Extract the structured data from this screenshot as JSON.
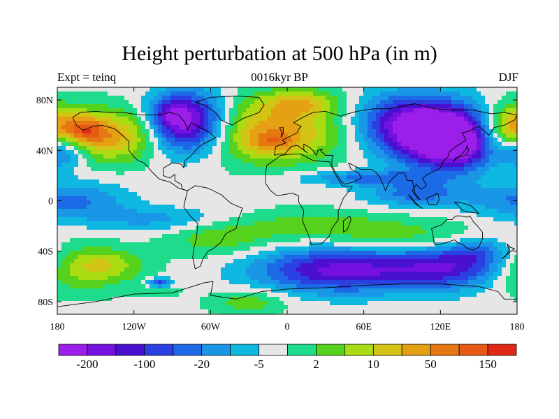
{
  "title": "Height perturbation at 500 hPa (in m)",
  "subtitle_left": "Expt = teinq",
  "subtitle_center": "0016kyr BP",
  "subtitle_right": "DJF",
  "map": {
    "projection": "cylindrical-equidistant",
    "lon_range": [
      -180,
      180
    ],
    "lat_range": [
      -90,
      90
    ],
    "x_ticks": [
      {
        "value": -180,
        "label": "180"
      },
      {
        "value": -120,
        "label": "120W"
      },
      {
        "value": -60,
        "label": "60W"
      },
      {
        "value": 0,
        "label": "0"
      },
      {
        "value": 60,
        "label": "60E"
      },
      {
        "value": 120,
        "label": "120E"
      },
      {
        "value": 180,
        "label": "180"
      }
    ],
    "y_ticks": [
      {
        "value": 80,
        "label": "80N"
      },
      {
        "value": 40,
        "label": "40N"
      },
      {
        "value": 0,
        "label": "0"
      },
      {
        "value": -40,
        "label": "40S"
      },
      {
        "value": -80,
        "label": "80S"
      }
    ]
  },
  "colorbar": {
    "colors": [
      "#9b1fe8",
      "#7411e0",
      "#4a10d0",
      "#2a40e0",
      "#1d6ae6",
      "#1a96e6",
      "#0fb8e0",
      "#e6e6e6",
      "#1edc8c",
      "#55d21e",
      "#aadc14",
      "#d2c314",
      "#e6a014",
      "#e67814",
      "#e65a14",
      "#e02814"
    ],
    "labels": [
      {
        "boundary": 1,
        "text": "-200"
      },
      {
        "boundary": 3,
        "text": "-100"
      },
      {
        "boundary": 5,
        "text": "-20"
      },
      {
        "boundary": 7,
        "text": "-5"
      },
      {
        "boundary": 9,
        "text": "2"
      },
      {
        "boundary": 11,
        "text": "10"
      },
      {
        "boundary": 13,
        "text": "50"
      },
      {
        "boundary": 15,
        "text": "150"
      }
    ]
  },
  "field_blobs": [
    {
      "lon": -140,
      "lat": 52,
      "rlon": 40,
      "rlat": 20,
      "val": 5
    },
    {
      "lon": -158,
      "lat": 56,
      "rlon": 14,
      "rlat": 10,
      "val": 3
    },
    {
      "lon": -78,
      "lat": 62,
      "rlon": 30,
      "rlat": 24,
      "val": -8
    },
    {
      "lon": -92,
      "lat": 68,
      "rlon": 14,
      "rlat": 12,
      "val": -2
    },
    {
      "lon": -10,
      "lat": 55,
      "rlon": 55,
      "rlat": 24,
      "val": 5
    },
    {
      "lon": -12,
      "lat": 46,
      "rlon": 18,
      "rlat": 8,
      "val": 2
    },
    {
      "lon": 10,
      "lat": 78,
      "rlon": 32,
      "rlat": 10,
      "val": 3
    },
    {
      "lon": 90,
      "lat": 62,
      "rlon": 40,
      "rlat": 24,
      "val": -5
    },
    {
      "lon": 125,
      "lat": 50,
      "rlon": 38,
      "rlat": 25,
      "val": -9
    },
    {
      "lon": 135,
      "lat": 42,
      "rlon": 18,
      "rlat": 14,
      "val": -2
    },
    {
      "lon": 175,
      "lat": 58,
      "rlon": 22,
      "rlat": 18,
      "val": 5
    },
    {
      "lon": -175,
      "lat": 40,
      "rlon": 18,
      "rlat": 14,
      "val": -4
    },
    {
      "lon": -170,
      "lat": 0,
      "rlon": 45,
      "rlat": 15,
      "val": -3
    },
    {
      "lon": -100,
      "lat": -15,
      "rlon": 55,
      "rlat": 10,
      "val": -2
    },
    {
      "lon": 60,
      "lat": 18,
      "rlon": 50,
      "rlat": 6,
      "val": -3
    },
    {
      "lon": 100,
      "lat": 5,
      "rlon": 40,
      "rlat": 10,
      "val": -3
    },
    {
      "lon": 20,
      "lat": -20,
      "rlon": 60,
      "rlat": 12,
      "val": 2
    },
    {
      "lon": 100,
      "lat": -30,
      "rlon": 60,
      "rlat": 14,
      "val": 2
    },
    {
      "lon": -55,
      "lat": -30,
      "rlon": 40,
      "rlat": 14,
      "val": 2
    },
    {
      "lon": -170,
      "lat": -55,
      "rlon": 40,
      "rlat": 18,
      "val": 3
    },
    {
      "lon": -140,
      "lat": -50,
      "rlon": 30,
      "rlat": 12,
      "val": 2
    },
    {
      "lon": 40,
      "lat": -55,
      "rlon": 65,
      "rlat": 18,
      "val": -6
    },
    {
      "lon": 130,
      "lat": -52,
      "rlon": 50,
      "rlat": 18,
      "val": -5
    },
    {
      "lon": 150,
      "lat": -40,
      "rlon": 25,
      "rlat": 12,
      "val": -2
    },
    {
      "lon": -100,
      "lat": -68,
      "rlon": 20,
      "rlat": 8,
      "val": 1
    },
    {
      "lon": -100,
      "lat": -65,
      "rlon": 10,
      "rlat": 4,
      "val": -5
    },
    {
      "lon": -30,
      "lat": -80,
      "rlon": 30,
      "rlat": 10,
      "val": 2
    }
  ],
  "coast_paths": [
    [
      [
        -168,
        66
      ],
      [
        -162,
        70
      ],
      [
        -150,
        71
      ],
      [
        -140,
        70
      ],
      [
        -128,
        70
      ],
      [
        -115,
        68
      ],
      [
        -100,
        68
      ],
      [
        -92,
        70
      ],
      [
        -85,
        68
      ],
      [
        -80,
        62
      ],
      [
        -78,
        56
      ],
      [
        -75,
        62
      ],
      [
        -68,
        58
      ],
      [
        -62,
        55
      ],
      [
        -56,
        50
      ],
      [
        -66,
        45
      ],
      [
        -70,
        42
      ],
      [
        -75,
        36
      ],
      [
        -80,
        32
      ],
      [
        -81,
        26
      ],
      [
        -83,
        29
      ],
      [
        -90,
        30
      ],
      [
        -97,
        26
      ],
      [
        -97,
        20
      ],
      [
        -92,
        18
      ],
      [
        -88,
        21
      ],
      [
        -88,
        16
      ],
      [
        -83,
        13
      ],
      [
        -82,
        9
      ],
      [
        -78,
        8
      ],
      [
        -85,
        10
      ],
      [
        -92,
        15
      ],
      [
        -100,
        17
      ],
      [
        -106,
        23
      ],
      [
        -112,
        30
      ],
      [
        -117,
        32
      ],
      [
        -120,
        35
      ],
      [
        -124,
        40
      ],
      [
        -124,
        47
      ],
      [
        -128,
        51
      ],
      [
        -135,
        57
      ],
      [
        -145,
        60
      ],
      [
        -152,
        59
      ],
      [
        -160,
        56
      ],
      [
        -165,
        60
      ],
      [
        -168,
        66
      ]
    ],
    [
      [
        -78,
        8
      ],
      [
        -72,
        12
      ],
      [
        -62,
        10
      ],
      [
        -52,
        5
      ],
      [
        -44,
        -2
      ],
      [
        -35,
        -6
      ],
      [
        -38,
        -14
      ],
      [
        -40,
        -22
      ],
      [
        -48,
        -26
      ],
      [
        -52,
        -33
      ],
      [
        -58,
        -38
      ],
      [
        -62,
        -40
      ],
      [
        -66,
        -46
      ],
      [
        -68,
        -52
      ],
      [
        -72,
        -54
      ],
      [
        -74,
        -45
      ],
      [
        -73,
        -37
      ],
      [
        -71,
        -30
      ],
      [
        -70,
        -18
      ],
      [
        -76,
        -12
      ],
      [
        -81,
        -5
      ],
      [
        -80,
        0
      ],
      [
        -78,
        8
      ]
    ],
    [
      [
        -72,
        78
      ],
      [
        -60,
        82
      ],
      [
        -40,
        83
      ],
      [
        -22,
        82
      ],
      [
        -18,
        76
      ],
      [
        -22,
        70
      ],
      [
        -35,
        65
      ],
      [
        -43,
        60
      ],
      [
        -52,
        64
      ],
      [
        -56,
        70
      ],
      [
        -65,
        76
      ],
      [
        -72,
        78
      ]
    ],
    [
      [
        -17,
        21
      ],
      [
        -16,
        28
      ],
      [
        -9,
        33
      ],
      [
        -5,
        36
      ],
      [
        3,
        37
      ],
      [
        11,
        37
      ],
      [
        20,
        32
      ],
      [
        30,
        31
      ],
      [
        33,
        31
      ],
      [
        37,
        22
      ],
      [
        43,
        12
      ],
      [
        51,
        11
      ],
      [
        44,
        2
      ],
      [
        40,
        -8
      ],
      [
        40,
        -15
      ],
      [
        35,
        -22
      ],
      [
        33,
        -28
      ],
      [
        27,
        -34
      ],
      [
        19,
        -35
      ],
      [
        17,
        -28
      ],
      [
        12,
        -16
      ],
      [
        13,
        -8
      ],
      [
        9,
        -1
      ],
      [
        9,
        4
      ],
      [
        4,
        6
      ],
      [
        -8,
        4
      ],
      [
        -13,
        8
      ],
      [
        -17,
        14
      ],
      [
        -17,
        21
      ]
    ],
    [
      [
        -10,
        36
      ],
      [
        -9,
        43
      ],
      [
        -1,
        46
      ],
      [
        -4,
        48
      ],
      [
        2,
        51
      ],
      [
        8,
        54
      ],
      [
        9,
        57
      ],
      [
        11,
        59
      ],
      [
        5,
        62
      ],
      [
        12,
        66
      ],
      [
        20,
        70
      ],
      [
        30,
        71
      ],
      [
        42,
        67
      ],
      [
        44,
        68
      ],
      [
        55,
        71
      ],
      [
        68,
        73
      ],
      [
        80,
        73
      ],
      [
        100,
        77
      ],
      [
        115,
        73
      ],
      [
        130,
        72
      ],
      [
        145,
        72
      ],
      [
        160,
        69
      ],
      [
        170,
        70
      ],
      [
        180,
        68
      ],
      [
        178,
        64
      ],
      [
        170,
        60
      ],
      [
        162,
        58
      ],
      [
        158,
        52
      ],
      [
        150,
        59
      ],
      [
        142,
        55
      ],
      [
        137,
        54
      ],
      [
        140,
        48
      ],
      [
        132,
        43
      ],
      [
        127,
        39
      ],
      [
        126,
        35
      ],
      [
        122,
        31
      ],
      [
        120,
        26
      ],
      [
        110,
        21
      ],
      [
        106,
        18
      ],
      [
        109,
        12
      ],
      [
        105,
        9
      ],
      [
        101,
        13
      ],
      [
        98,
        8
      ],
      [
        102,
        2
      ],
      [
        104,
        1
      ],
      [
        100,
        6
      ],
      [
        98,
        16
      ],
      [
        94,
        16
      ],
      [
        92,
        22
      ],
      [
        87,
        22
      ],
      [
        80,
        15
      ],
      [
        77,
        8
      ],
      [
        73,
        18
      ],
      [
        70,
        22
      ],
      [
        66,
        25
      ],
      [
        57,
        25
      ],
      [
        56,
        26
      ],
      [
        52,
        28
      ],
      [
        48,
        30
      ],
      [
        50,
        25
      ],
      [
        56,
        22
      ],
      [
        58,
        18
      ],
      [
        52,
        15
      ],
      [
        45,
        13
      ],
      [
        42,
        16
      ],
      [
        38,
        22
      ],
      [
        35,
        28
      ],
      [
        35,
        33
      ],
      [
        36,
        36
      ],
      [
        30,
        36
      ],
      [
        26,
        40
      ],
      [
        28,
        41
      ],
      [
        24,
        40
      ],
      [
        23,
        36
      ],
      [
        20,
        40
      ],
      [
        18,
        42
      ],
      [
        13,
        45
      ],
      [
        13,
        40
      ],
      [
        16,
        38
      ],
      [
        8,
        44
      ],
      [
        3,
        43
      ],
      [
        -2,
        37
      ],
      [
        -6,
        37
      ],
      [
        -10,
        36
      ]
    ],
    [
      [
        -5,
        50
      ],
      [
        -3,
        54
      ],
      [
        -3,
        58
      ],
      [
        -6,
        58
      ],
      [
        -4,
        54
      ],
      [
        -5,
        50
      ]
    ],
    [
      [
        130,
        31
      ],
      [
        132,
        34
      ],
      [
        136,
        35
      ],
      [
        140,
        36
      ],
      [
        142,
        40
      ],
      [
        141,
        44
      ],
      [
        140,
        41
      ],
      [
        137,
        37
      ],
      [
        133,
        34
      ],
      [
        130,
        31
      ]
    ],
    [
      [
        113,
        -22
      ],
      [
        114,
        -26
      ],
      [
        115,
        -34
      ],
      [
        118,
        -35
      ],
      [
        125,
        -33
      ],
      [
        131,
        -31
      ],
      [
        135,
        -34
      ],
      [
        138,
        -35
      ],
      [
        141,
        -38
      ],
      [
        146,
        -39
      ],
      [
        150,
        -37
      ],
      [
        153,
        -30
      ],
      [
        153,
        -25
      ],
      [
        149,
        -20
      ],
      [
        146,
        -17
      ],
      [
        143,
        -12
      ],
      [
        141,
        -13
      ],
      [
        136,
        -12
      ],
      [
        132,
        -12
      ],
      [
        129,
        -15
      ],
      [
        125,
        -15
      ],
      [
        121,
        -19
      ],
      [
        113,
        -22
      ]
    ],
    [
      [
        95,
        5
      ],
      [
        100,
        -1
      ],
      [
        104,
        -5
      ],
      [
        106,
        -6
      ],
      [
        101,
        -3
      ],
      [
        97,
        2
      ],
      [
        95,
        5
      ]
    ],
    [
      [
        109,
        2
      ],
      [
        114,
        4
      ],
      [
        118,
        6
      ],
      [
        119,
        1
      ],
      [
        117,
        -3
      ],
      [
        111,
        -3
      ],
      [
        109,
        2
      ]
    ],
    [
      [
        131,
        -1
      ],
      [
        138,
        -2
      ],
      [
        144,
        -4
      ],
      [
        150,
        -10
      ],
      [
        143,
        -9
      ],
      [
        138,
        -8
      ],
      [
        131,
        -1
      ]
    ],
    [
      [
        44,
        -25
      ],
      [
        47,
        -23
      ],
      [
        50,
        -15
      ],
      [
        49,
        -12
      ],
      [
        44,
        -16
      ],
      [
        44,
        -25
      ]
    ],
    [
      [
        172,
        -34
      ],
      [
        175,
        -37
      ],
      [
        178,
        -38
      ],
      [
        174,
        -41
      ],
      [
        168,
        -46
      ],
      [
        171,
        -44
      ],
      [
        174,
        -39
      ],
      [
        172,
        -34
      ]
    ],
    [
      [
        -180,
        -84
      ],
      [
        -150,
        -80
      ],
      [
        -120,
        -74
      ],
      [
        -90,
        -73
      ],
      [
        -65,
        -65
      ],
      [
        -58,
        -64
      ],
      [
        -60,
        -75
      ],
      [
        -40,
        -78
      ],
      [
        -20,
        -72
      ],
      [
        0,
        -70
      ],
      [
        30,
        -69
      ],
      [
        60,
        -67
      ],
      [
        90,
        -66
      ],
      [
        120,
        -66
      ],
      [
        150,
        -68
      ],
      [
        165,
        -72
      ],
      [
        170,
        -78
      ],
      [
        180,
        -78
      ]
    ]
  ]
}
